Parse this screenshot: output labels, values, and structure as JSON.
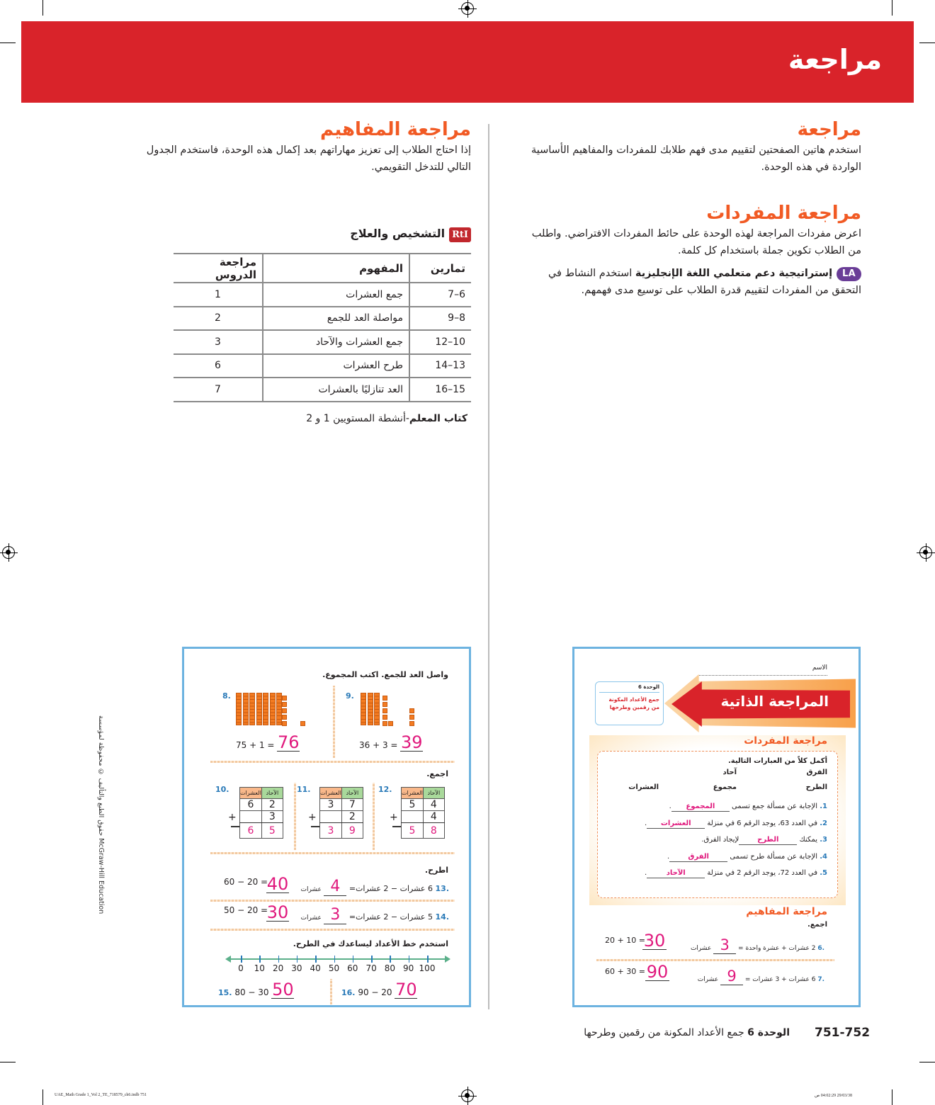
{
  "banner": {
    "title": "مراجعة",
    "color": "#d9232a"
  },
  "right_col": {
    "review_heading": "مراجعة",
    "review_text": "استخدم هاتين الصفحتين لتقييم مدى فهم طلابك للمفردات والمفاهيم الأساسية الواردة في هذه الوحدة.",
    "vocab_heading": "مراجعة المفردات",
    "vocab_text": "اعرض مفردات المراجعة لهذه الوحدة على حائط المفردات الافتراضي. واطلب من الطلاب تكوين جملة باستخدام كل كلمة.",
    "la_badge": "LA",
    "la_title": "إستراتيجية دعم متعلمي اللغة الإنجليزية",
    "la_text": "استخدم النشاط في التحقق من المفردات لتقييم قدرة الطلاب على توسيع مدى فهمهم."
  },
  "left_col": {
    "concepts_heading": "مراجعة المفاهيم",
    "concepts_text": "إذا احتاج الطلاب إلى تعزيز مهاراتهم بعد إكمال هذه الوحدة، فاستخدم الجدول التالي للتدخل التقويمي.",
    "rti_badge": "RtI",
    "rti_title": "التشخيص والعلاج",
    "table": {
      "headers": [
        "تمارين",
        "المفهوم",
        "مراجعة الدروس"
      ],
      "rows": [
        [
          "6–7",
          "جمع العشرات",
          "1"
        ],
        [
          "8–9",
          "مواصلة العد للجمع",
          "2"
        ],
        [
          "10–12",
          "جمع العشرات والآحاد",
          "3"
        ],
        [
          "13–14",
          "طرح العشرات",
          "6"
        ],
        [
          "15–16",
          "العد تنازليًا بالعشرات",
          "7"
        ]
      ]
    },
    "teacher_book_bold": "كتاب المعلم",
    "teacher_book_rest": "-أنشطة المستويين 1 و 2"
  },
  "side_copyright": "حقوق الطبع والتأليف © محفوظة لمؤسسة McGraw-Hill Education",
  "student_right": {
    "name_label": "الاسم",
    "banner_title": "المراجعة الذاتية",
    "unit_label": "الوحدة 6",
    "unit_title": "جمع الأعداد المكونة من رقمين وطرحها",
    "vocab_heading": "مراجعة المفردات",
    "instruction": "أكمل كلاً من العبارات التالية.",
    "word_bank": [
      "الفرق",
      "آحاد",
      "الطرح",
      "مجموع",
      "العشرات"
    ],
    "items": [
      {
        "num": "1.",
        "before": "الإجابة عن مسألة جمع تسمى",
        "answer": "المجموع",
        "after": "."
      },
      {
        "num": "2.",
        "before": "في العدد 63، يوجد الرقم 6 في منزلة",
        "answer": "العشرات",
        "after": "."
      },
      {
        "num": "3.",
        "before": "يمكنك",
        "answer": "الطرح",
        "after": "لإيجاد الفرق."
      },
      {
        "num": "4.",
        "before": "الإجابة عن مسألة طرح تسمى",
        "answer": "الفرق",
        "after": "."
      },
      {
        "num": "5.",
        "before": "في العدد 72، يوجد الرقم 2 في منزلة",
        "answer": "الآحاد",
        "after": "."
      }
    ],
    "concepts_heading": "مراجعة المفاهيم",
    "add_label": "اجمع.",
    "q6": {
      "num": ".6",
      "words": "2 عشرات + عشرة واحدة =",
      "ans1": "3",
      "unit": "عشرات",
      "eq": "20 + 10 =",
      "ans2": "30"
    },
    "q7": {
      "num": ".7",
      "words": "6 عشرات + 3 عشرات =",
      "ans1": "9",
      "unit": "عشرات",
      "eq": "60 + 30 =",
      "ans2": "90"
    }
  },
  "student_left": {
    "count_on_instruction": "واصل العد للجمع. اكتب المجموع.",
    "q8": {
      "num": "8.",
      "eq": "75 + 1 =",
      "ans": "76"
    },
    "q9": {
      "num": "9.",
      "eq": "36 + 3 =",
      "ans": "39"
    },
    "add_label": "اجمع.",
    "tens_label": "العشرات",
    "ones_label": "الآحاد",
    "q10": {
      "num": "10.",
      "t1": "6",
      "o1": "2",
      "o2": "3",
      "at": "6",
      "ao": "5"
    },
    "q11": {
      "num": "11.",
      "t1": "3",
      "o1": "7",
      "o2": "2",
      "at": "3",
      "ao": "9"
    },
    "q12": {
      "num": "12.",
      "t1": "5",
      "o1": "4",
      "o2": "4",
      "at": "5",
      "ao": "8"
    },
    "subtract_label": "اطرح.",
    "q13": {
      "num": ".13",
      "words": "6 عشرات − 2 عشرات=",
      "ans1": "4",
      "unit": "عشرات",
      "eq": "60 − 20 =",
      "ans2": "40"
    },
    "q14": {
      "num": ".14",
      "words": "5 عشرات − 2 عشرات=",
      "ans1": "3",
      "unit": "عشرات",
      "eq": "50 − 20 =",
      "ans2": "30"
    },
    "numberline_instruction": "استخدم خط الأعداد ليساعدك في الطرح.",
    "numberline_labels": [
      "0",
      "10",
      "20",
      "30",
      "40",
      "50",
      "60",
      "70",
      "80",
      "90",
      "100"
    ],
    "q15": {
      "num": "15.",
      "eq": "80 − 30",
      "ans": "50"
    },
    "q16": {
      "num": "16.",
      "eq": "90 − 20",
      "ans": "70"
    }
  },
  "footer": {
    "pages": "751-752",
    "unit_bold": "الوحدة 6",
    "unit_title": "جمع الأعداد المكونة من رقمين وطرحها"
  },
  "slug": {
    "file": "UAE_Math Grade 1_Vol 2_TE_718579_ch6.indb   751",
    "date": "29/03/38   04:02:29 ص"
  }
}
